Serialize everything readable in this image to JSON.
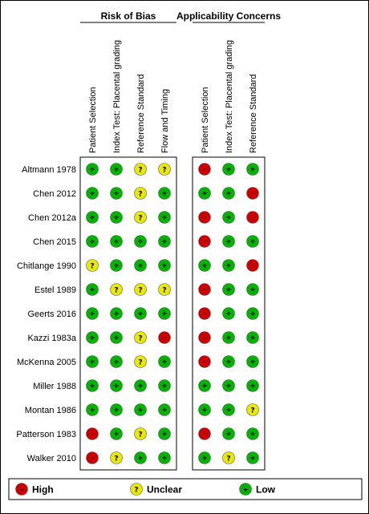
{
  "groups": [
    {
      "title": "Risk of Bias",
      "domains": [
        "Patient Selection",
        "Index Test: Placental grading",
        "Reference Standard",
        "Flow and Timing"
      ]
    },
    {
      "title": "Applicability Concerns",
      "domains": [
        "Patient Selection",
        "Index Test: Placental grading",
        "Reference Standard"
      ]
    }
  ],
  "studies": [
    {
      "name": "Altmann 1978",
      "bias": [
        "low",
        "low",
        "unclear",
        "unclear"
      ],
      "applicability": [
        "high",
        "low",
        "low"
      ]
    },
    {
      "name": "Chen 2012",
      "bias": [
        "low",
        "low",
        "unclear",
        "low"
      ],
      "applicability": [
        "low",
        "low",
        "high"
      ]
    },
    {
      "name": "Chen 2012a",
      "bias": [
        "low",
        "low",
        "unclear",
        "low"
      ],
      "applicability": [
        "high",
        "low",
        "high"
      ]
    },
    {
      "name": "Chen 2015",
      "bias": [
        "low",
        "low",
        "low",
        "low"
      ],
      "applicability": [
        "high",
        "low",
        "low"
      ]
    },
    {
      "name": "Chitlange 1990",
      "bias": [
        "unclear",
        "low",
        "low",
        "low"
      ],
      "applicability": [
        "low",
        "low",
        "high"
      ]
    },
    {
      "name": "Estel 1989",
      "bias": [
        "low",
        "unclear",
        "unclear",
        "unclear"
      ],
      "applicability": [
        "high",
        "low",
        "low"
      ]
    },
    {
      "name": "Geerts 2016",
      "bias": [
        "low",
        "low",
        "low",
        "low"
      ],
      "applicability": [
        "high",
        "low",
        "low"
      ]
    },
    {
      "name": "Kazzi 1983a",
      "bias": [
        "low",
        "low",
        "unclear",
        "high"
      ],
      "applicability": [
        "high",
        "low",
        "low"
      ]
    },
    {
      "name": "McKenna 2005",
      "bias": [
        "low",
        "low",
        "unclear",
        "low"
      ],
      "applicability": [
        "high",
        "low",
        "low"
      ]
    },
    {
      "name": "Miller 1988",
      "bias": [
        "low",
        "low",
        "low",
        "low"
      ],
      "applicability": [
        "low",
        "low",
        "low"
      ]
    },
    {
      "name": "Montan 1986",
      "bias": [
        "low",
        "low",
        "low",
        "low"
      ],
      "applicability": [
        "low",
        "low",
        "unclear"
      ]
    },
    {
      "name": "Patterson 1983",
      "bias": [
        "high",
        "low",
        "unclear",
        "low"
      ],
      "applicability": [
        "high",
        "low",
        "low"
      ]
    },
    {
      "name": "Walker 2010",
      "bias": [
        "high",
        "unclear",
        "low",
        "low"
      ],
      "applicability": [
        "low",
        "unclear",
        "low"
      ]
    }
  ],
  "legend": [
    {
      "key": "high",
      "label": "High"
    },
    {
      "key": "unclear",
      "label": "Unclear"
    },
    {
      "key": "low",
      "label": "Low"
    }
  ],
  "colors": {
    "high": "#cc0000",
    "unclear": "#e8e800",
    "low": "#00b400"
  },
  "symbols": {
    "high": "–",
    "unclear": "?",
    "low": "+"
  }
}
